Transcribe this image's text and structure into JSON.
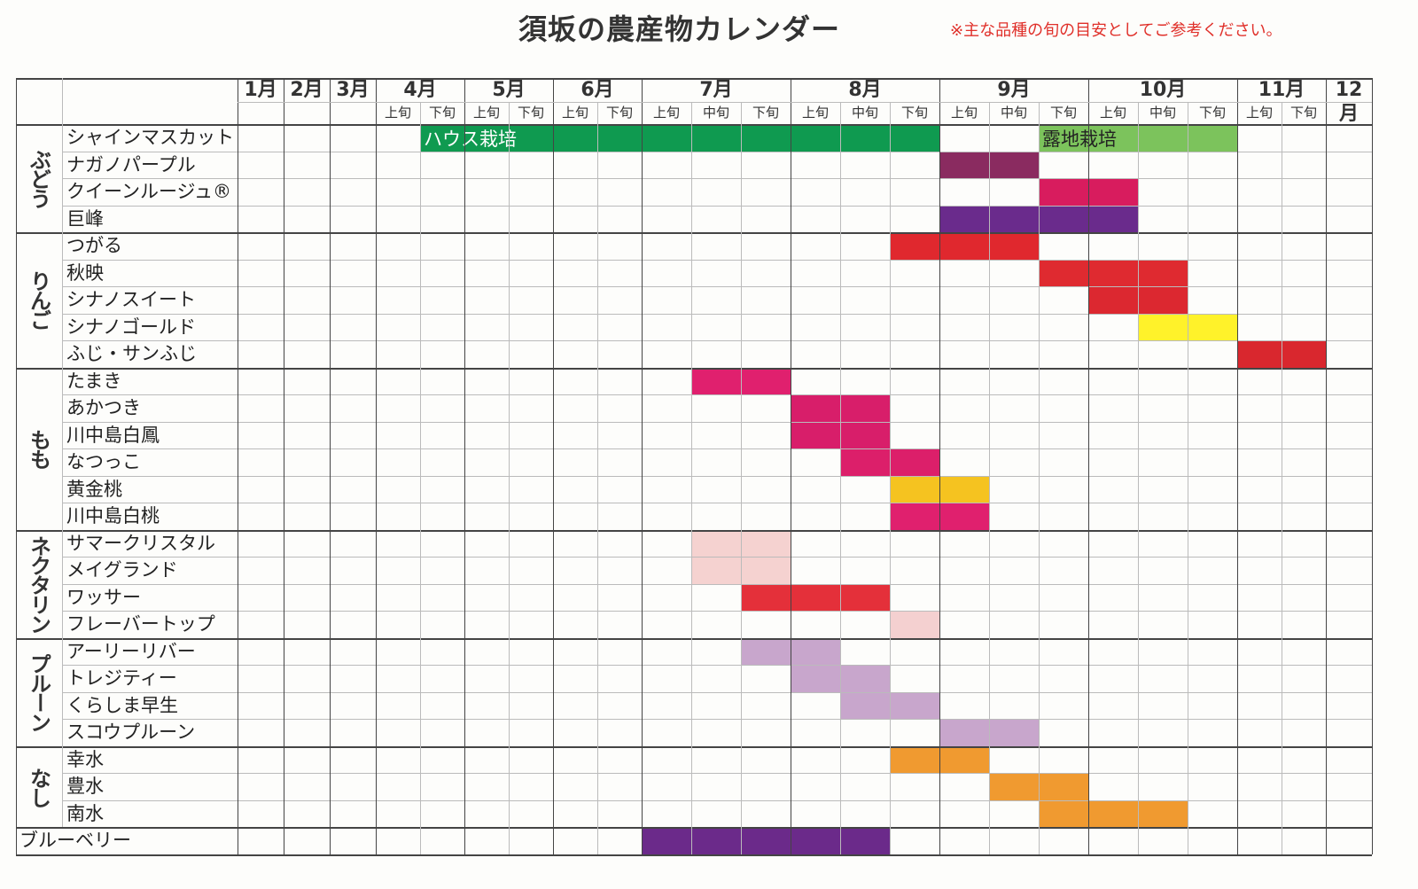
{
  "header": {
    "title": "須坂の農産物カレンダー",
    "note": "※主な品種の旬の目安としてご参考ください。"
  },
  "months": [
    {
      "label": "1月"
    },
    {
      "label": "2月"
    },
    {
      "label": "3月"
    },
    {
      "label": "4月",
      "periods": [
        "上旬",
        "下旬"
      ]
    },
    {
      "label": "5月",
      "periods": [
        "上旬",
        "下旬"
      ]
    },
    {
      "label": "6月",
      "periods": [
        "上旬",
        "下旬"
      ]
    },
    {
      "label": "7月",
      "periods": [
        "上旬",
        "中旬",
        "下旬"
      ]
    },
    {
      "label": "8月",
      "periods": [
        "上旬",
        "中旬",
        "下旬"
      ]
    },
    {
      "label": "9月",
      "periods": [
        "上旬",
        "中旬",
        "下旬"
      ]
    },
    {
      "label": "10月",
      "periods": [
        "上旬",
        "中旬",
        "下旬"
      ]
    },
    {
      "label": "11月",
      "periods": [
        "上旬",
        "下旬"
      ]
    },
    {
      "label": "12月"
    }
  ],
  "groups": [
    {
      "label": "ぶどう",
      "rows": [
        {
          "name": "シャインマスカット",
          "spans": [
            {
              "from": [
                3,
                1
              ],
              "to": [
                7,
                2
              ],
              "label": "ハウス栽培",
              "color": "#0f9a50"
            },
            {
              "from": [
                8,
                2
              ],
              "to": [
                9,
                2
              ],
              "label": "露地栽培",
              "color": "#7cc35c"
            }
          ]
        },
        {
          "name": "ナガノパープル",
          "spans": [
            {
              "from": [
                8,
                0
              ],
              "to": [
                8,
                1
              ],
              "color": "#8a2b60"
            }
          ]
        },
        {
          "name": "クイーンルージュ®",
          "spans": [
            {
              "from": [
                8,
                2
              ],
              "to": [
                9,
                0
              ],
              "color": "#d81c5e"
            }
          ]
        },
        {
          "name": "巨峰",
          "spans": [
            {
              "from": [
                8,
                0
              ],
              "to": [
                9,
                0
              ],
              "color": "#6a2b8c"
            }
          ]
        }
      ]
    },
    {
      "label": "りんご",
      "rows": [
        {
          "name": "つがる",
          "spans": [
            {
              "from": [
                7,
                2
              ],
              "to": [
                8,
                1
              ],
              "color": "#e0282e"
            }
          ]
        },
        {
          "name": "秋映",
          "spans": [
            {
              "from": [
                8,
                2
              ],
              "to": [
                9,
                1
              ],
              "color": "#df2a30"
            }
          ]
        },
        {
          "name": "シナノスイート",
          "spans": [
            {
              "from": [
                9,
                0
              ],
              "to": [
                9,
                1
              ],
              "color": "#dc2830"
            }
          ]
        },
        {
          "name": "シナノゴールド",
          "spans": [
            {
              "from": [
                9,
                1
              ],
              "to": [
                9,
                2
              ],
              "color": "#fff22a"
            }
          ]
        },
        {
          "name": "ふじ・サンふじ",
          "spans": [
            {
              "from": [
                10,
                0
              ],
              "to": [
                10,
                1
              ],
              "color": "#d9272e"
            }
          ]
        }
      ]
    },
    {
      "label": "もも",
      "rows": [
        {
          "name": "たまき",
          "spans": [
            {
              "from": [
                6,
                1
              ],
              "to": [
                6,
                2
              ],
              "color": "#e0206e"
            }
          ]
        },
        {
          "name": "あかつき",
          "spans": [
            {
              "from": [
                7,
                0
              ],
              "to": [
                7,
                1
              ],
              "color": "#d81e6a"
            }
          ]
        },
        {
          "name": "川中島白鳳",
          "spans": [
            {
              "from": [
                7,
                0
              ],
              "to": [
                7,
                1
              ],
              "color": "#d81e6a"
            }
          ]
        },
        {
          "name": "なつっこ",
          "spans": [
            {
              "from": [
                7,
                1
              ],
              "to": [
                7,
                2
              ],
              "color": "#dc1f6a"
            }
          ]
        },
        {
          "name": "黄金桃",
          "spans": [
            {
              "from": [
                7,
                2
              ],
              "to": [
                8,
                0
              ],
              "color": "#f5c320"
            }
          ]
        },
        {
          "name": "川中島白桃",
          "spans": [
            {
              "from": [
                7,
                2
              ],
              "to": [
                8,
                0
              ],
              "color": "#e0206e"
            }
          ]
        }
      ]
    },
    {
      "label": "ネクタリン",
      "rows": [
        {
          "name": "サマークリスタル",
          "spans": [
            {
              "from": [
                6,
                1
              ],
              "to": [
                6,
                2
              ],
              "color": "#f5d2d0"
            }
          ]
        },
        {
          "name": "メイグランド",
          "spans": [
            {
              "from": [
                6,
                1
              ],
              "to": [
                6,
                2
              ],
              "color": "#f5d2d0"
            }
          ]
        },
        {
          "name": "ワッサー",
          "spans": [
            {
              "from": [
                6,
                2
              ],
              "to": [
                7,
                1
              ],
              "color": "#e4303a"
            }
          ]
        },
        {
          "name": "フレーバートップ",
          "spans": [
            {
              "from": [
                7,
                2
              ],
              "to": [
                7,
                2
              ],
              "color": "#f4d0d0"
            }
          ]
        }
      ]
    },
    {
      "label": "プルーン",
      "rows": [
        {
          "name": "アーリーリバー",
          "spans": [
            {
              "from": [
                6,
                2
              ],
              "to": [
                7,
                0
              ],
              "color": "#c8a6cc"
            }
          ]
        },
        {
          "name": "トレジティー",
          "spans": [
            {
              "from": [
                7,
                0
              ],
              "to": [
                7,
                1
              ],
              "color": "#c8a6cc"
            }
          ]
        },
        {
          "name": "くらしま早生",
          "spans": [
            {
              "from": [
                7,
                1
              ],
              "to": [
                7,
                2
              ],
              "color": "#c8a6cc"
            }
          ]
        },
        {
          "name": "スコウプルーン",
          "spans": [
            {
              "from": [
                8,
                0
              ],
              "to": [
                8,
                1
              ],
              "color": "#c8a6cc"
            }
          ]
        }
      ]
    },
    {
      "label": "なし",
      "rows": [
        {
          "name": "幸水",
          "spans": [
            {
              "from": [
                7,
                2
              ],
              "to": [
                8,
                0
              ],
              "color": "#f09a30"
            }
          ]
        },
        {
          "name": "豊水",
          "spans": [
            {
              "from": [
                8,
                1
              ],
              "to": [
                8,
                2
              ],
              "color": "#f09a30"
            }
          ]
        },
        {
          "name": "南水",
          "spans": [
            {
              "from": [
                8,
                2
              ],
              "to": [
                9,
                1
              ],
              "color": "#f09a30"
            }
          ]
        }
      ]
    },
    {
      "label": "ブルーベリー",
      "rows": [
        {
          "spans": [
            {
              "from": [
                6,
                0
              ],
              "to": [
                7,
                1
              ],
              "color": "#6b2a8a"
            }
          ]
        }
      ]
    }
  ]
}
